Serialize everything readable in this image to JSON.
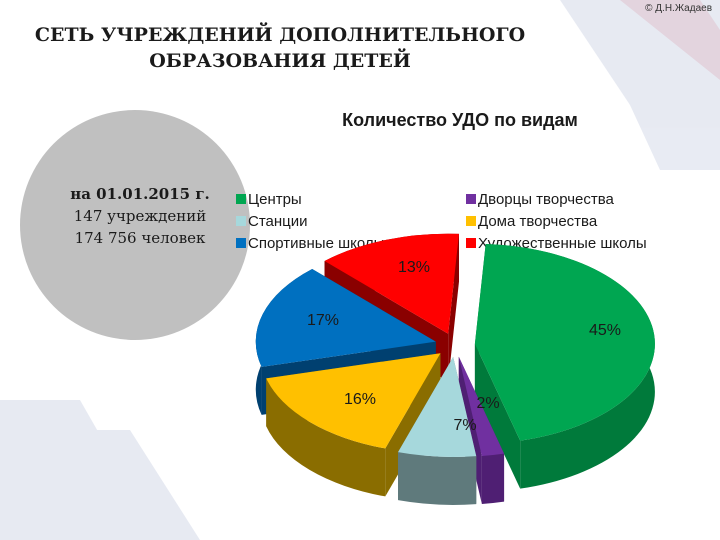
{
  "header": {
    "copyright": "© Д.Н.Жадаев",
    "title_line1": "СЕТЬ УЧРЕЖДЕНИЙ ДОПОЛНИТЕЛЬНОГО",
    "title_line2": "ОБРАЗОВАНИЯ ДЕТЕЙ"
  },
  "info": {
    "date": "на 01.01.2015 г.",
    "institutions": "147 учреждений",
    "people": "174 756 человек"
  },
  "chart_data": {
    "type": "pie",
    "title": "Количество УДО по видам",
    "series": [
      {
        "name": "Центры",
        "value": 45,
        "label": "45%",
        "color": "#00a651",
        "side": "#007a3b"
      },
      {
        "name": "Дворцы творчества",
        "value": 2,
        "label": "2%",
        "color": "#7030a0",
        "side": "#4f1f73"
      },
      {
        "name": "Станции",
        "value": 7,
        "label": "7%",
        "color": "#a6d8dc",
        "side": "#5f7a7c"
      },
      {
        "name": "Дома творчества",
        "value": 16,
        "label": "16%",
        "color": "#ffc000",
        "side": "#8a6d00"
      },
      {
        "name": "Спортивные школы",
        "value": 17,
        "label": "17%",
        "color": "#0070c0",
        "side": "#004070"
      },
      {
        "name": "Художественные школы",
        "value": 13,
        "label": "13%",
        "color": "#ff0000",
        "side": "#8a0000"
      }
    ],
    "legend_position": "top"
  },
  "colors": {
    "info_circle": "#c0c0c0",
    "deco_blue": "#1f3d8a",
    "deco_red": "#c8102e"
  }
}
